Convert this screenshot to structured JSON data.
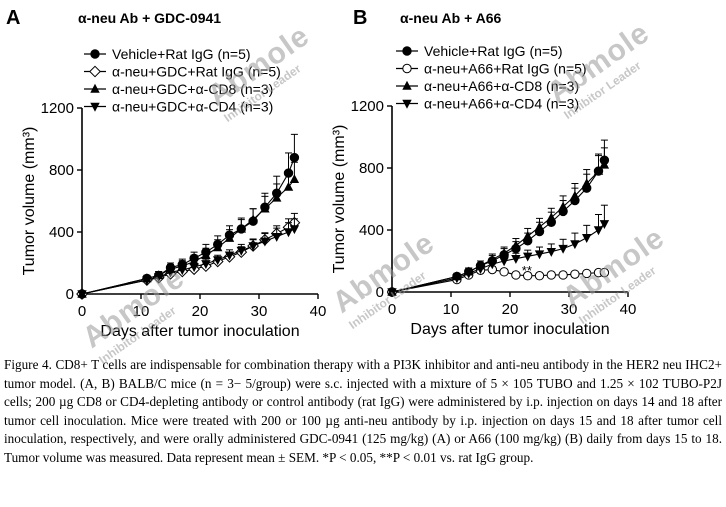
{
  "panels": [
    {
      "letter": "A",
      "title": "α-neu Ab + GDC-0941",
      "chart_data": {
        "type": "line",
        "xlabel": "Days after tumor inoculation",
        "ylabel": "Tumor volume (mm³)",
        "xlim": [
          0,
          40
        ],
        "ylim": [
          0,
          1200
        ],
        "xticks": [
          0,
          10,
          20,
          30,
          40
        ],
        "yticks": [
          0,
          400,
          800,
          1200
        ],
        "legend": "top-left",
        "series": [
          {
            "name": "Vehicle+Rat IgG (n=5)",
            "marker": "circle-filled",
            "x": [
              0,
              11,
              13,
              15,
              17,
              19,
              21,
              23,
              25,
              27,
              29,
              31,
              33,
              35,
              36
            ],
            "y": [
              0,
              100,
              120,
              170,
              190,
              230,
              270,
              320,
              380,
              420,
              470,
              560,
              650,
              780,
              880
            ],
            "err": [
              0,
              20,
              25,
              30,
              35,
              40,
              50,
              55,
              60,
              70,
              80,
              90,
              110,
              130,
              150
            ]
          },
          {
            "name": "α-neu+GDC+Rat IgG (n=5)",
            "marker": "diamond-open",
            "x": [
              0,
              11,
              13,
              15,
              17,
              19,
              21,
              23,
              25,
              27,
              29,
              31,
              33,
              35,
              36
            ],
            "y": [
              0,
              90,
              105,
              130,
              145,
              160,
              180,
              210,
              240,
              270,
              310,
              350,
              390,
              430,
              460
            ],
            "err": [
              0,
              15,
              15,
              20,
              20,
              25,
              25,
              30,
              30,
              35,
              40,
              45,
              50,
              55,
              60
            ]
          },
          {
            "name": "α-neu+GDC+α-CD8 (n=3)",
            "marker": "triangle-up-filled",
            "x": [
              0,
              11,
              13,
              15,
              17,
              19,
              21,
              23,
              25,
              27,
              29,
              31,
              33,
              35,
              36
            ],
            "y": [
              0,
              100,
              120,
              160,
              180,
              210,
              250,
              300,
              360,
              420,
              480,
              550,
              620,
              690,
              740
            ],
            "err": [
              0,
              20,
              25,
              30,
              35,
              40,
              45,
              50,
              55,
              60,
              70,
              80,
              90,
              100,
              110
            ]
          },
          {
            "name": "α-neu+GDC+α-CD4 (n=3)",
            "marker": "triangle-down-filled",
            "x": [
              0,
              11,
              13,
              15,
              17,
              19,
              21,
              23,
              25,
              27,
              29,
              31,
              33,
              35,
              36
            ],
            "y": [
              0,
              90,
              110,
              140,
              155,
              175,
              195,
              220,
              250,
              280,
              310,
              340,
              370,
              400,
              420
            ],
            "err": [
              0,
              15,
              20,
              20,
              25,
              25,
              30,
              30,
              35,
              40,
              45,
              50,
              55,
              60,
              65
            ]
          }
        ]
      }
    },
    {
      "letter": "B",
      "title": "α-neu Ab + A66",
      "chart_data": {
        "type": "line",
        "xlabel": "Days after tumor inoculation",
        "ylabel": "Tumor volume (mm³)",
        "xlim": [
          0,
          40
        ],
        "ylim": [
          0,
          1200
        ],
        "xticks": [
          0,
          10,
          20,
          30,
          40
        ],
        "yticks": [
          0,
          400,
          800,
          1200
        ],
        "legend": "top-left",
        "annotations": [
          {
            "text": "**",
            "x": 22,
            "y": 200
          }
        ],
        "series": [
          {
            "name": "Vehicle+Rat IgG (n=5)",
            "marker": "circle-filled",
            "x": [
              0,
              11,
              13,
              15,
              17,
              19,
              21,
              23,
              25,
              27,
              29,
              31,
              33,
              35,
              36
            ],
            "y": [
              0,
              100,
              130,
              170,
              200,
              240,
              280,
              330,
              390,
              450,
              520,
              590,
              670,
              780,
              850
            ],
            "err": [
              0,
              20,
              25,
              30,
              35,
              40,
              45,
              50,
              60,
              65,
              70,
              80,
              90,
              110,
              130
            ]
          },
          {
            "name": "α-neu+A66+Rat IgG (n=5)",
            "marker": "circle-open",
            "x": [
              0,
              11,
              13,
              15,
              17,
              19,
              21,
              23,
              25,
              27,
              29,
              31,
              33,
              35,
              36
            ],
            "y": [
              0,
              80,
              110,
              140,
              145,
              130,
              110,
              105,
              105,
              110,
              110,
              115,
              120,
              125,
              125
            ],
            "err": [
              0,
              15,
              15,
              20,
              20,
              15,
              15,
              15,
              15,
              15,
              15,
              15,
              15,
              15,
              15
            ]
          },
          {
            "name": "α-neu+A66+α-CD8 (n=3)",
            "marker": "triangle-up-filled",
            "x": [
              0,
              11,
              13,
              15,
              17,
              19,
              21,
              23,
              25,
              27,
              29,
              31,
              33,
              35,
              36
            ],
            "y": [
              0,
              100,
              130,
              170,
              210,
              250,
              300,
              360,
              420,
              480,
              550,
              620,
              700,
              780,
              820
            ],
            "err": [
              0,
              20,
              25,
              30,
              35,
              40,
              45,
              50,
              55,
              60,
              70,
              80,
              90,
              100,
              110
            ]
          },
          {
            "name": "α-neu+A66+α-CD4 (n=3)",
            "marker": "triangle-down-filled",
            "x": [
              0,
              11,
              13,
              15,
              17,
              19,
              21,
              23,
              25,
              27,
              29,
              31,
              33,
              35,
              36
            ],
            "y": [
              0,
              90,
              120,
              150,
              180,
              200,
              215,
              230,
              245,
              260,
              280,
              310,
              350,
              400,
              440
            ],
            "err": [
              0,
              15,
              20,
              25,
              30,
              30,
              35,
              40,
              45,
              50,
              60,
              70,
              80,
              100,
              120
            ]
          }
        ]
      }
    }
  ],
  "caption": "Figure 4. CD8+ T cells are indispensable for combination therapy with a PI3K inhibitor and anti-neu antibody in the HER2 neu IHC2+ tumor model. (A, B) BALB/C mice (n = 3− 5/group) were s.c. injected with a mixture of 5 × 105 TUBO and 1.25 × 102 TUBO-P2J cells; 200 µg CD8 or CD4-depleting antibody or control antibody (rat IgG) were administered by i.p. injection on days 14 and 18 after tumor cell inoculation. Mice were treated with 200 or 100 µg anti-neu antibody by i.p. injection on days 15 and 18 after tumor cell inoculation, respectively, and were orally administered GDC-0941 (125 mg/kg) (A) or A66 (100 mg/kg) (B) daily from days 15 to 18. Tumor volume was measured. Data represent mean ± SEM. *P < 0.05, **P < 0.01 vs. rat IgG group.",
  "watermark": {
    "text": "Abmole",
    "subtext": "Inhibitor Leader"
  }
}
